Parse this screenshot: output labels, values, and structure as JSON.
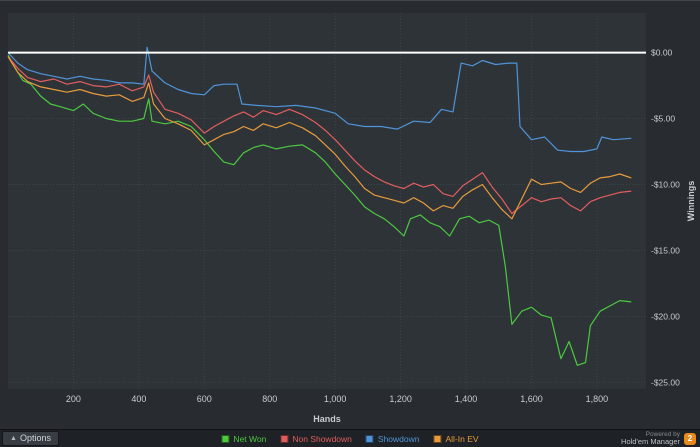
{
  "colors": {
    "background": "#282b2f",
    "plot_background": "#2e3338",
    "grid": "#3d434a",
    "axis_text": "#c8cdd2",
    "zero_line": "#ffffff",
    "net_won": "#4cc93f",
    "non_showdown": "#e25e5e",
    "showdown": "#4f94d8",
    "all_in_ev": "#e89b3d",
    "logo_orange": "#e8891d"
  },
  "status_bar": {
    "options_label": "Options",
    "powered_by_line1": "Powered by",
    "powered_by_line2": "Hold'em Manager",
    "logo_text": "2"
  },
  "chart_data": {
    "type": "line",
    "title": "",
    "xlabel": "Hands",
    "ylabel": "Winnings",
    "xlim": [
      0,
      1950
    ],
    "ylim": [
      -25.5,
      3
    ],
    "grid": true,
    "legend_position": "bottom",
    "x_ticks": [
      200,
      400,
      600,
      800,
      1000,
      1200,
      1400,
      1600,
      1800
    ],
    "x_tick_labels": [
      "200",
      "400",
      "600",
      "800",
      "1,000",
      "1,200",
      "1,400",
      "1,600",
      "1,800"
    ],
    "y_ticks": [
      0,
      -5,
      -10,
      -15,
      -20,
      -25
    ],
    "y_tick_labels": [
      "$0.00",
      "-$5.00",
      "-$10.00",
      "-$15.00",
      "-$20.00",
      "-$25.00"
    ],
    "zero_line": {
      "value": 0,
      "color": "#ffffff"
    },
    "series": [
      {
        "name": "Net Won",
        "color": "#4cc93f",
        "points": [
          [
            0,
            -0.2
          ],
          [
            25,
            -1.3
          ],
          [
            45,
            -2.1
          ],
          [
            70,
            -2.4
          ],
          [
            100,
            -3.3
          ],
          [
            130,
            -3.9
          ],
          [
            160,
            -4.1
          ],
          [
            200,
            -4.4
          ],
          [
            230,
            -3.9
          ],
          [
            260,
            -4.6
          ],
          [
            300,
            -5.0
          ],
          [
            340,
            -5.2
          ],
          [
            380,
            -5.2
          ],
          [
            415,
            -5.0
          ],
          [
            430,
            -3.5
          ],
          [
            440,
            -5.2
          ],
          [
            480,
            -5.4
          ],
          [
            520,
            -5.2
          ],
          [
            560,
            -5.6
          ],
          [
            600,
            -6.6
          ],
          [
            630,
            -7.5
          ],
          [
            660,
            -8.3
          ],
          [
            690,
            -8.5
          ],
          [
            720,
            -7.6
          ],
          [
            750,
            -7.2
          ],
          [
            780,
            -7.0
          ],
          [
            820,
            -7.3
          ],
          [
            860,
            -7.1
          ],
          [
            900,
            -7.0
          ],
          [
            940,
            -7.6
          ],
          [
            970,
            -8.3
          ],
          [
            1000,
            -9.2
          ],
          [
            1030,
            -10.0
          ],
          [
            1060,
            -10.8
          ],
          [
            1090,
            -11.7
          ],
          [
            1120,
            -12.2
          ],
          [
            1150,
            -12.6
          ],
          [
            1180,
            -13.2
          ],
          [
            1210,
            -13.9
          ],
          [
            1230,
            -12.6
          ],
          [
            1260,
            -12.3
          ],
          [
            1290,
            -12.9
          ],
          [
            1320,
            -13.2
          ],
          [
            1350,
            -13.9
          ],
          [
            1380,
            -12.6
          ],
          [
            1410,
            -12.4
          ],
          [
            1440,
            -12.9
          ],
          [
            1470,
            -12.7
          ],
          [
            1500,
            -13.1
          ],
          [
            1520,
            -16.2
          ],
          [
            1540,
            -20.6
          ],
          [
            1570,
            -19.6
          ],
          [
            1600,
            -19.3
          ],
          [
            1630,
            -19.9
          ],
          [
            1660,
            -20.1
          ],
          [
            1690,
            -23.2
          ],
          [
            1715,
            -21.9
          ],
          [
            1740,
            -23.7
          ],
          [
            1765,
            -23.5
          ],
          [
            1780,
            -20.7
          ],
          [
            1810,
            -19.6
          ],
          [
            1840,
            -19.2
          ],
          [
            1870,
            -18.8
          ],
          [
            1905,
            -18.9
          ]
        ]
      },
      {
        "name": "Non Showdown",
        "color": "#e25e5e",
        "points": [
          [
            0,
            -0.3
          ],
          [
            30,
            -1.2
          ],
          [
            60,
            -1.9
          ],
          [
            100,
            -2.2
          ],
          [
            140,
            -2.0
          ],
          [
            180,
            -2.4
          ],
          [
            220,
            -2.2
          ],
          [
            260,
            -2.5
          ],
          [
            300,
            -2.6
          ],
          [
            340,
            -2.4
          ],
          [
            380,
            -2.9
          ],
          [
            415,
            -2.6
          ],
          [
            430,
            -1.7
          ],
          [
            445,
            -3.0
          ],
          [
            480,
            -4.3
          ],
          [
            520,
            -4.6
          ],
          [
            560,
            -5.1
          ],
          [
            600,
            -6.1
          ],
          [
            630,
            -5.6
          ],
          [
            660,
            -5.2
          ],
          [
            690,
            -4.8
          ],
          [
            720,
            -4.5
          ],
          [
            750,
            -4.9
          ],
          [
            780,
            -4.4
          ],
          [
            820,
            -4.7
          ],
          [
            860,
            -4.3
          ],
          [
            900,
            -4.7
          ],
          [
            940,
            -5.3
          ],
          [
            970,
            -5.9
          ],
          [
            1000,
            -6.6
          ],
          [
            1030,
            -7.4
          ],
          [
            1060,
            -8.2
          ],
          [
            1090,
            -8.9
          ],
          [
            1120,
            -9.4
          ],
          [
            1150,
            -9.8
          ],
          [
            1180,
            -10.1
          ],
          [
            1210,
            -10.3
          ],
          [
            1240,
            -9.9
          ],
          [
            1270,
            -10.2
          ],
          [
            1300,
            -10.0
          ],
          [
            1330,
            -10.7
          ],
          [
            1360,
            -10.9
          ],
          [
            1390,
            -10.1
          ],
          [
            1420,
            -9.6
          ],
          [
            1450,
            -9.1
          ],
          [
            1480,
            -10.2
          ],
          [
            1510,
            -11.1
          ],
          [
            1540,
            -12.2
          ],
          [
            1570,
            -11.6
          ],
          [
            1600,
            -11.0
          ],
          [
            1630,
            -11.3
          ],
          [
            1660,
            -11.1
          ],
          [
            1690,
            -11.0
          ],
          [
            1720,
            -11.6
          ],
          [
            1750,
            -12.0
          ],
          [
            1780,
            -11.3
          ],
          [
            1810,
            -11.0
          ],
          [
            1840,
            -10.8
          ],
          [
            1870,
            -10.6
          ],
          [
            1905,
            -10.5
          ]
        ]
      },
      {
        "name": "Showdown",
        "color": "#4f94d8",
        "points": [
          [
            0,
            0.0
          ],
          [
            30,
            -0.8
          ],
          [
            60,
            -1.3
          ],
          [
            100,
            -1.6
          ],
          [
            140,
            -1.8
          ],
          [
            180,
            -2.0
          ],
          [
            220,
            -1.8
          ],
          [
            260,
            -2.0
          ],
          [
            300,
            -2.1
          ],
          [
            340,
            -2.3
          ],
          [
            380,
            -2.3
          ],
          [
            415,
            -2.4
          ],
          [
            425,
            0.4
          ],
          [
            440,
            -1.4
          ],
          [
            480,
            -2.3
          ],
          [
            520,
            -2.8
          ],
          [
            560,
            -3.1
          ],
          [
            600,
            -3.2
          ],
          [
            630,
            -2.5
          ],
          [
            660,
            -2.4
          ],
          [
            700,
            -2.4
          ],
          [
            715,
            -3.9
          ],
          [
            760,
            -4.0
          ],
          [
            820,
            -4.1
          ],
          [
            880,
            -4.0
          ],
          [
            940,
            -4.2
          ],
          [
            1000,
            -4.6
          ],
          [
            1040,
            -5.4
          ],
          [
            1090,
            -5.6
          ],
          [
            1140,
            -5.6
          ],
          [
            1190,
            -5.8
          ],
          [
            1240,
            -5.2
          ],
          [
            1290,
            -5.3
          ],
          [
            1325,
            -4.3
          ],
          [
            1360,
            -4.5
          ],
          [
            1385,
            -0.8
          ],
          [
            1420,
            -1.0
          ],
          [
            1450,
            -0.6
          ],
          [
            1490,
            -0.9
          ],
          [
            1530,
            -0.8
          ],
          [
            1555,
            -0.8
          ],
          [
            1565,
            -5.6
          ],
          [
            1600,
            -6.6
          ],
          [
            1640,
            -6.4
          ],
          [
            1680,
            -7.4
          ],
          [
            1720,
            -7.5
          ],
          [
            1760,
            -7.5
          ],
          [
            1800,
            -7.3
          ],
          [
            1815,
            -6.4
          ],
          [
            1850,
            -6.6
          ],
          [
            1905,
            -6.5
          ]
        ]
      },
      {
        "name": "All-In EV",
        "color": "#e89b3d",
        "points": [
          [
            0,
            -0.3
          ],
          [
            30,
            -1.5
          ],
          [
            60,
            -2.2
          ],
          [
            100,
            -2.6
          ],
          [
            140,
            -2.8
          ],
          [
            180,
            -3.0
          ],
          [
            220,
            -2.8
          ],
          [
            260,
            -3.1
          ],
          [
            300,
            -3.3
          ],
          [
            340,
            -3.2
          ],
          [
            380,
            -3.7
          ],
          [
            415,
            -3.4
          ],
          [
            430,
            -2.3
          ],
          [
            445,
            -3.9
          ],
          [
            480,
            -5.0
          ],
          [
            520,
            -5.4
          ],
          [
            560,
            -5.9
          ],
          [
            600,
            -7.0
          ],
          [
            630,
            -6.6
          ],
          [
            660,
            -6.2
          ],
          [
            690,
            -6.0
          ],
          [
            720,
            -5.6
          ],
          [
            750,
            -5.9
          ],
          [
            780,
            -5.4
          ],
          [
            820,
            -5.7
          ],
          [
            860,
            -5.3
          ],
          [
            900,
            -5.7
          ],
          [
            940,
            -6.3
          ],
          [
            970,
            -7.0
          ],
          [
            1000,
            -7.7
          ],
          [
            1030,
            -8.6
          ],
          [
            1060,
            -9.4
          ],
          [
            1090,
            -10.3
          ],
          [
            1120,
            -10.8
          ],
          [
            1150,
            -11.0
          ],
          [
            1180,
            -11.2
          ],
          [
            1210,
            -11.4
          ],
          [
            1240,
            -11.0
          ],
          [
            1270,
            -11.4
          ],
          [
            1300,
            -12.0
          ],
          [
            1330,
            -11.6
          ],
          [
            1360,
            -11.8
          ],
          [
            1390,
            -10.9
          ],
          [
            1420,
            -10.4
          ],
          [
            1450,
            -10.0
          ],
          [
            1480,
            -11.0
          ],
          [
            1510,
            -11.9
          ],
          [
            1540,
            -12.6
          ],
          [
            1570,
            -11.1
          ],
          [
            1600,
            -9.6
          ],
          [
            1630,
            -10.0
          ],
          [
            1660,
            -9.9
          ],
          [
            1690,
            -9.8
          ],
          [
            1720,
            -10.3
          ],
          [
            1750,
            -10.6
          ],
          [
            1780,
            -9.9
          ],
          [
            1810,
            -9.5
          ],
          [
            1840,
            -9.4
          ],
          [
            1870,
            -9.2
          ],
          [
            1905,
            -9.5
          ]
        ]
      }
    ]
  }
}
